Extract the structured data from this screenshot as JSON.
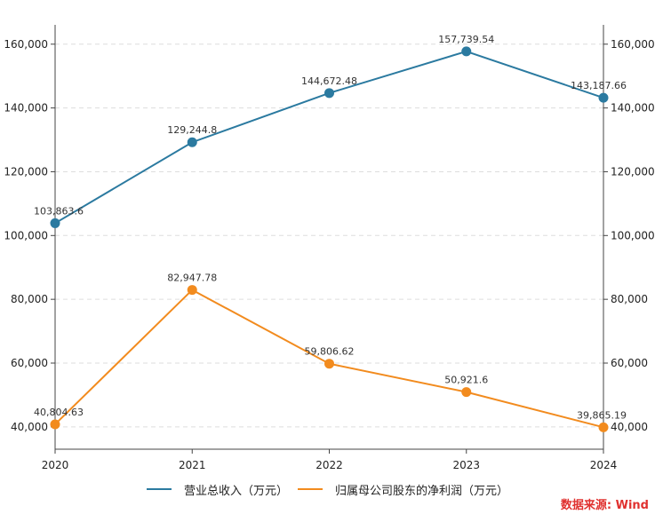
{
  "chart_data": {
    "type": "line",
    "categories": [
      "2020",
      "2021",
      "2022",
      "2023",
      "2024"
    ],
    "series": [
      {
        "name": "营业总收入（万元）",
        "color": "#2b7aa0",
        "values": [
          103863.6,
          129244.8,
          144672.48,
          157739.54,
          143187.66
        ],
        "labels": [
          "103,863.6",
          "129,244.8",
          "144,672.48",
          "157,739.54",
          "143,187.66"
        ]
      },
      {
        "name": "归属母公司股东的净利润（万元）",
        "color": "#f28b1e",
        "values": [
          40804.63,
          82947.78,
          59806.62,
          50921.6,
          39865.19
        ],
        "labels": [
          "40,804.63",
          "82,947.78",
          "59,806.62",
          "50,921.6",
          "39,865.19"
        ]
      }
    ],
    "yticks": [
      40000,
      60000,
      80000,
      100000,
      120000,
      140000,
      160000
    ],
    "ytick_labels": [
      "40,000",
      "60,000",
      "80,000",
      "100,000",
      "120,000",
      "140,000",
      "160,000"
    ],
    "ylim": [
      33000,
      165500
    ],
    "grid": true,
    "legend": "bottom"
  },
  "source": "数据来源: Wind"
}
